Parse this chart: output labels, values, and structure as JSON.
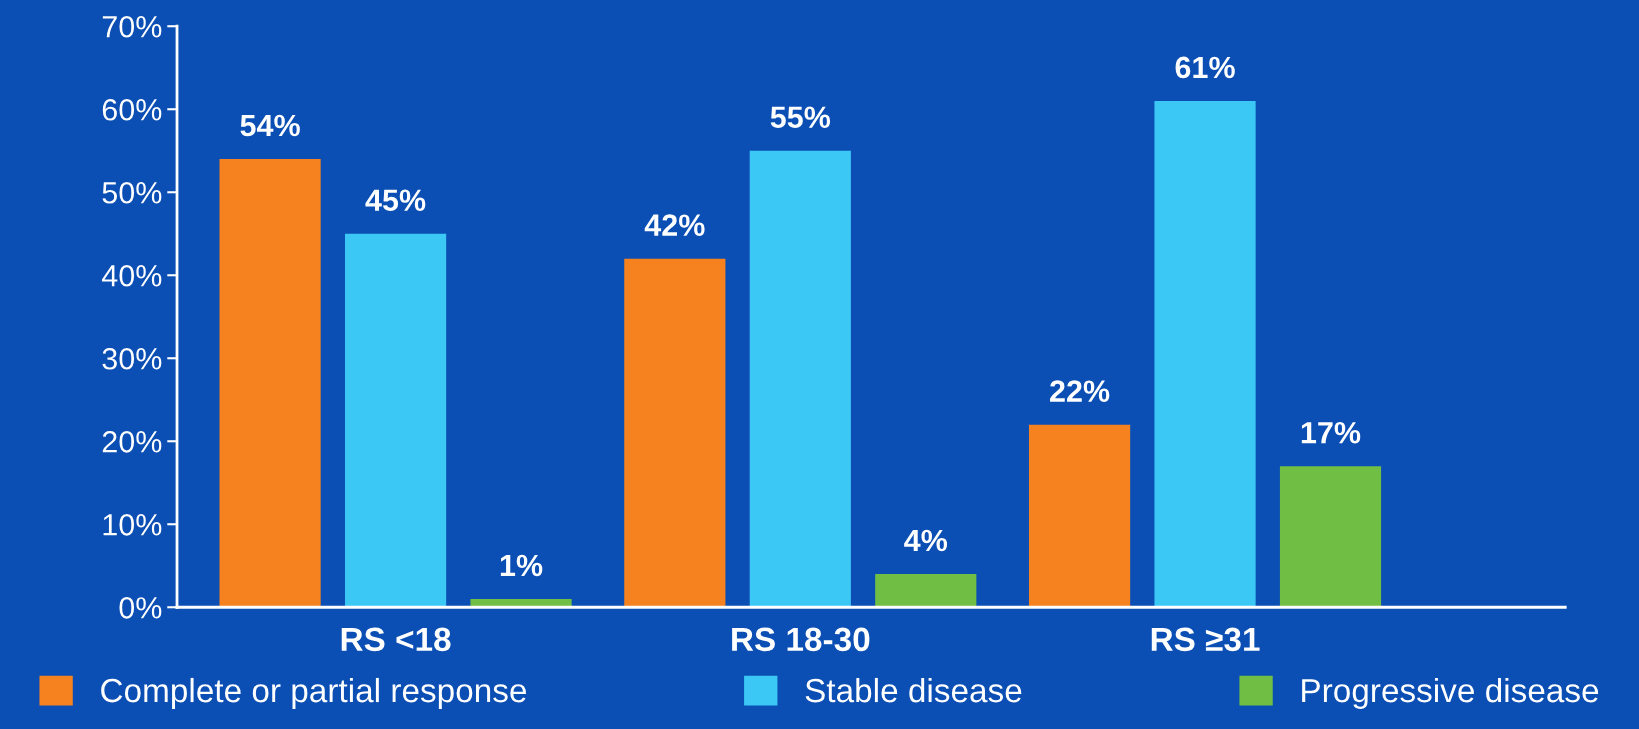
{
  "chart_data": {
    "type": "bar",
    "categories": [
      "RS <18",
      "RS 18-30",
      "RS ≥31"
    ],
    "series": [
      {
        "name": "Complete or partial response",
        "color": "#f5821f",
        "values": [
          54,
          42,
          22
        ],
        "value_labels": [
          "54%",
          "42%",
          "22%"
        ]
      },
      {
        "name": "Stable disease",
        "color": "#3cc8f4",
        "values": [
          45,
          55,
          61
        ],
        "value_labels": [
          "45%",
          "55%",
          "61%"
        ]
      },
      {
        "name": "Progressive disease",
        "color": "#70bf44",
        "values": [
          1,
          4,
          17
        ],
        "value_labels": [
          "1%",
          "4%",
          "17%"
        ]
      }
    ],
    "ylim": [
      0,
      70
    ],
    "yticks": [
      {
        "value": 0,
        "label": "0%"
      },
      {
        "value": 10,
        "label": "10%"
      },
      {
        "value": 20,
        "label": "20%"
      },
      {
        "value": 30,
        "label": "30%"
      },
      {
        "value": 40,
        "label": "40%"
      },
      {
        "value": 50,
        "label": "50%"
      },
      {
        "value": 60,
        "label": "60%"
      },
      {
        "value": 70,
        "label": "70%"
      }
    ],
    "grid": false,
    "legend": "bottom"
  }
}
